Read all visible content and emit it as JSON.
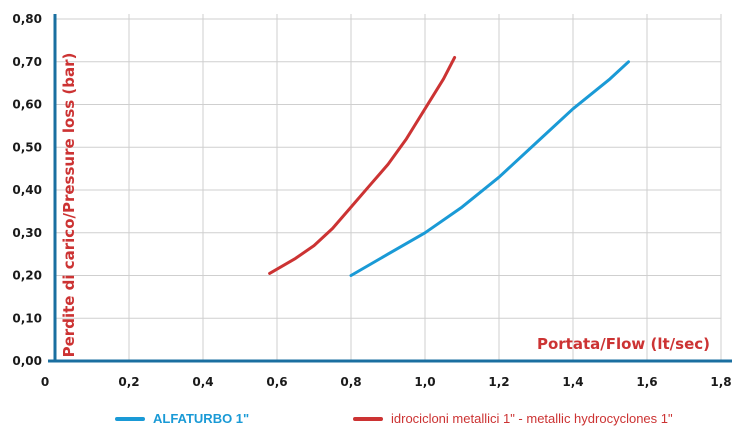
{
  "chart_data": {
    "type": "line",
    "xlabel": "Portata/Flow (lt/sec)",
    "ylabel": "Perdite di carico/Pressure loss (bar)",
    "xlim": [
      0,
      1.8
    ],
    "ylim": [
      0,
      0.8
    ],
    "x_ticks": [
      "0",
      "0,2",
      "0,4",
      "0,6",
      "0,8",
      "1,0",
      "1,2",
      "1,4",
      "1,6",
      "1,8"
    ],
    "y_ticks": [
      "0,00",
      "0,10",
      "0,20",
      "0,30",
      "0,40",
      "0,50",
      "0,60",
      "0,70",
      "0,80"
    ],
    "grid": true,
    "legend_position": "bottom",
    "series": [
      {
        "name": "ALFATURBO 1\"",
        "color": "#1a9ad6",
        "x": [
          0.8,
          0.9,
          1.0,
          1.1,
          1.2,
          1.3,
          1.4,
          1.5,
          1.55
        ],
        "y": [
          0.2,
          0.25,
          0.3,
          0.36,
          0.43,
          0.51,
          0.59,
          0.66,
          0.7
        ]
      },
      {
        "name": "idrocicloni metallici 1\" - metallic hydrocyclones 1\"",
        "color": "#cc3333",
        "x": [
          0.58,
          0.65,
          0.7,
          0.75,
          0.8,
          0.85,
          0.9,
          0.95,
          1.0,
          1.05,
          1.08
        ],
        "y": [
          0.205,
          0.24,
          0.27,
          0.31,
          0.36,
          0.41,
          0.46,
          0.52,
          0.59,
          0.66,
          0.71
        ]
      }
    ]
  }
}
